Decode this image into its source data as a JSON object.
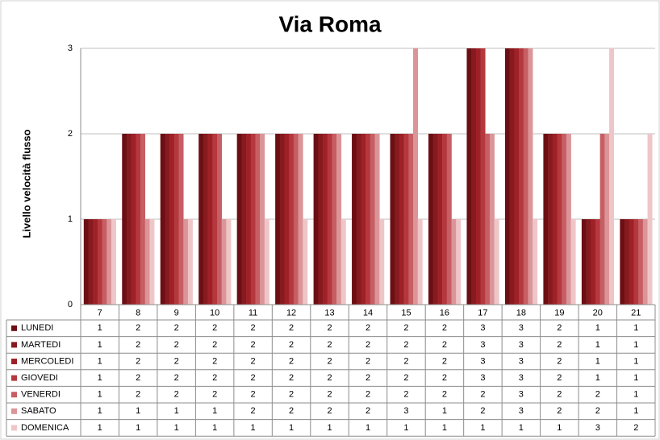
{
  "chart_data": {
    "type": "bar",
    "title": "Via Roma",
    "y_label": "Livello velocità flusso",
    "categories": [
      "7",
      "8",
      "9",
      "10",
      "11",
      "12",
      "13",
      "14",
      "15",
      "16",
      "17",
      "18",
      "19",
      "20",
      "21"
    ],
    "series": [
      {
        "name": "LUNEDI",
        "color": "#6b0f14",
        "values": [
          1,
          2,
          2,
          2,
          2,
          2,
          2,
          2,
          2,
          2,
          3,
          3,
          2,
          1,
          1
        ]
      },
      {
        "name": "MARTEDI",
        "color": "#871a1f",
        "values": [
          1,
          2,
          2,
          2,
          2,
          2,
          2,
          2,
          2,
          2,
          3,
          3,
          2,
          1,
          1
        ]
      },
      {
        "name": "MERCOLEDI",
        "color": "#9e2127",
        "values": [
          1,
          2,
          2,
          2,
          2,
          2,
          2,
          2,
          2,
          2,
          3,
          3,
          2,
          1,
          1
        ]
      },
      {
        "name": "GIOVEDI",
        "color": "#b4383d",
        "values": [
          1,
          2,
          2,
          2,
          2,
          2,
          2,
          2,
          2,
          2,
          3,
          3,
          2,
          1,
          1
        ]
      },
      {
        "name": "VENERDI",
        "color": "#c65e63",
        "values": [
          1,
          2,
          2,
          2,
          2,
          2,
          2,
          2,
          2,
          2,
          2,
          3,
          2,
          2,
          1
        ]
      },
      {
        "name": "SABATO",
        "color": "#db9598",
        "values": [
          1,
          1,
          1,
          1,
          2,
          2,
          2,
          2,
          3,
          1,
          2,
          3,
          2,
          2,
          1
        ]
      },
      {
        "name": "DOMENICA",
        "color": "#efc6c8",
        "values": [
          1,
          1,
          1,
          1,
          1,
          1,
          1,
          1,
          1,
          1,
          1,
          1,
          1,
          3,
          2
        ]
      }
    ],
    "ylim": [
      0,
      3
    ],
    "yticks": [
      0,
      1,
      2,
      3
    ],
    "grid": true
  }
}
